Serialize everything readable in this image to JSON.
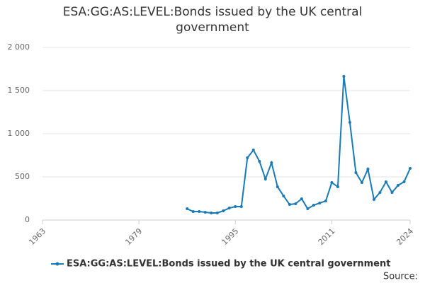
{
  "chart_data": {
    "type": "line",
    "title": "ESA:GG:AS:LEVEL:Bonds issued by the UK central government",
    "x": [
      1987,
      1988,
      1989,
      1990,
      1991,
      1992,
      1993,
      1994,
      1995,
      1996,
      1997,
      1998,
      1999,
      2000,
      2001,
      2002,
      2003,
      2004,
      2005,
      2006,
      2007,
      2008,
      2009,
      2010,
      2011,
      2012,
      2013,
      2014,
      2015,
      2016,
      2017,
      2018,
      2019,
      2020,
      2021,
      2022,
      2023,
      2024
    ],
    "series": [
      {
        "name": "ESA:GG:AS:LEVEL:Bonds issued by the UK central government",
        "color": "#1a7ab5",
        "values": [
          131,
          98,
          98,
          90,
          82,
          82,
          107,
          139,
          156,
          156,
          721,
          811,
          680,
          475,
          664,
          385,
          279,
          180,
          189,
          246,
          131,
          172,
          197,
          221,
          434,
          385,
          1664,
          1131,
          549,
          434,
          590,
          238,
          320,
          443,
          320,
          402,
          443,
          598
        ]
      }
    ],
    "xlim": [
      1963,
      2024
    ],
    "xticks": [
      1963,
      1979,
      1995,
      2011,
      2024
    ],
    "ylim": [
      0,
      2000
    ],
    "yticks": [
      0,
      500,
      {
        "value": 1000,
        "label": "1 000"
      },
      {
        "value": 1500,
        "label": "1 500"
      },
      {
        "value": 2000,
        "label": "2 000"
      }
    ],
    "grid": true,
    "legend": "bottom",
    "source": "Source:"
  }
}
